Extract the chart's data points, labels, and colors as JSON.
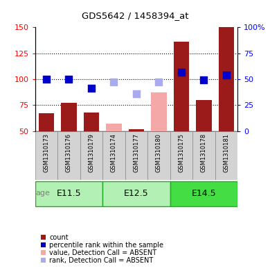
{
  "title": "GDS5642 / 1458394_at",
  "samples": [
    "GSM1310173",
    "GSM1310176",
    "GSM1310179",
    "GSM1310174",
    "GSM1310177",
    "GSM1310180",
    "GSM1310175",
    "GSM1310178",
    "GSM1310181"
  ],
  "age_groups": [
    {
      "label": "E11.5"
    },
    {
      "label": "E12.5"
    },
    {
      "label": "E14.5"
    }
  ],
  "count_values": [
    67,
    77,
    68,
    null,
    52,
    null,
    136,
    80,
    150
  ],
  "count_absent": [
    null,
    null,
    null,
    57,
    null,
    87,
    null,
    null,
    null
  ],
  "rank_values": [
    100,
    100,
    91,
    null,
    null,
    null,
    107,
    99,
    104
  ],
  "rank_absent": [
    null,
    null,
    null,
    97,
    86,
    97,
    null,
    null,
    null
  ],
  "ylim_left": [
    50,
    150
  ],
  "ylim_right": [
    0,
    100
  ],
  "yticks_left": [
    50,
    75,
    100,
    125,
    150
  ],
  "yticks_right": [
    0,
    25,
    50,
    75,
    100
  ],
  "ytick_labels_right": [
    "0",
    "25",
    "50",
    "75",
    "100%"
  ],
  "bar_color_present": "#9b1a1a",
  "bar_color_absent": "#f4a8a8",
  "dot_color_present": "#0000cc",
  "dot_color_absent": "#aaaaee",
  "age_color_light": "#b3f0b3",
  "age_color_dark": "#44dd44",
  "age_border": "#22aa22",
  "bar_width": 0.7,
  "dot_size": 45,
  "legend_items": [
    {
      "label": "count",
      "color": "#9b1a1a"
    },
    {
      "label": "percentile rank within the sample",
      "color": "#0000cc"
    },
    {
      "label": "value, Detection Call = ABSENT",
      "color": "#f4a8a8"
    },
    {
      "label": "rank, Detection Call = ABSENT",
      "color": "#aaaaee"
    }
  ]
}
